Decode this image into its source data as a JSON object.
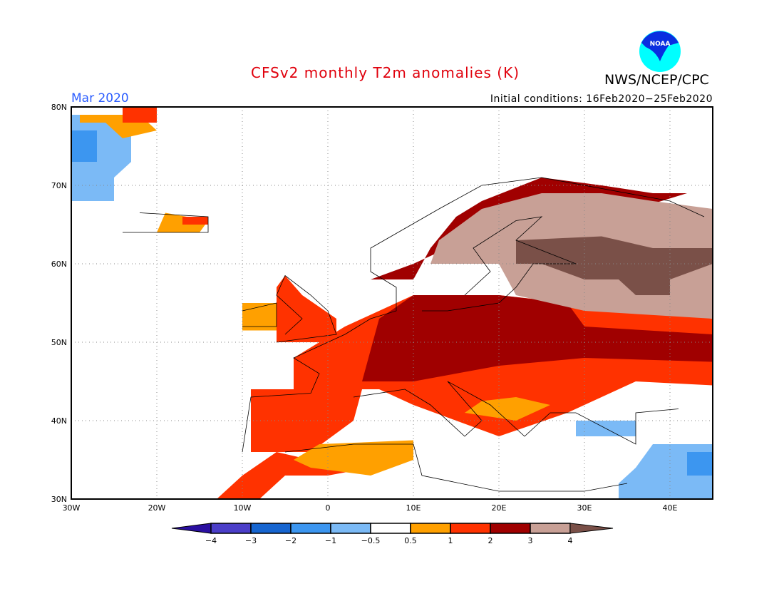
{
  "title": "CFSv2 monthly T2m anomalies (K)",
  "month": "Mar 2020",
  "initial_conditions": "Initial conditions: 16Feb2020−25Feb2020",
  "agency": "NWS/NCEP/CPC",
  "logo_text": "NOAA",
  "lat_labels": [
    "80N",
    "70N",
    "60N",
    "50N",
    "40N",
    "30N"
  ],
  "lon_labels": [
    "30W",
    "20W",
    "10W",
    "0",
    "10E",
    "20E",
    "30E",
    "40E"
  ],
  "colorbar": {
    "labels": [
      "−4",
      "−3",
      "−2",
      "−1",
      "−0.5",
      "0.5",
      "1",
      "2",
      "3",
      "4"
    ],
    "colors": [
      "#2a0fa0",
      "#4b3ec8",
      "#1665d0",
      "#3c96f0",
      "#7bbaf6",
      "#ffffff",
      "#ffa000",
      "#ff3200",
      "#a00000",
      "#c8a096",
      "#7a5048"
    ]
  }
}
